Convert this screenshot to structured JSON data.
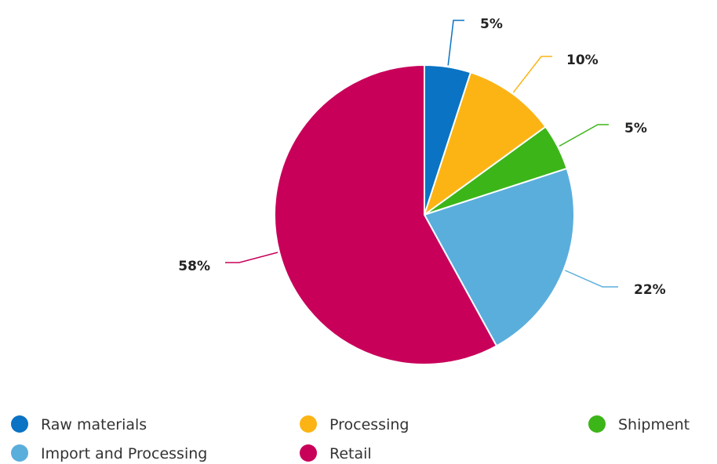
{
  "chart_data": {
    "type": "pie",
    "title": "",
    "slices": [
      {
        "label": "Raw materials",
        "value": 5,
        "display": "5%",
        "color": "#0a73c4"
      },
      {
        "label": "Processing",
        "value": 10,
        "display": "10%",
        "color": "#fcb415"
      },
      {
        "label": "Shipment",
        "value": 5,
        "display": "5%",
        "color": "#3cb518"
      },
      {
        "label": "Import and Processing",
        "value": 22,
        "display": "22%",
        "color": "#5aaedc"
      },
      {
        "label": "Retail",
        "value": 58,
        "display": "58%",
        "color": "#c8005a"
      }
    ],
    "legend_position": "bottom",
    "start_angle": "top, clockwise"
  }
}
